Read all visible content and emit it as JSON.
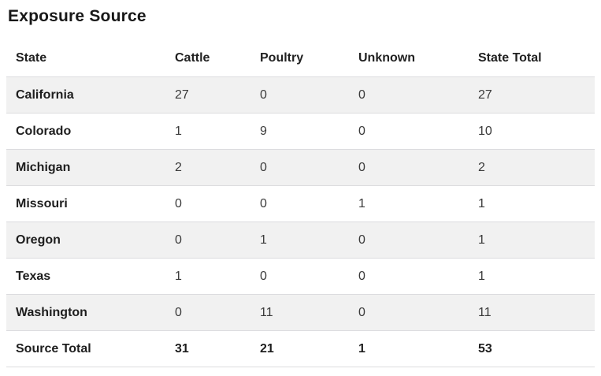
{
  "title": "Exposure Source",
  "chart_data": {
    "type": "table",
    "title": "Exposure Source",
    "columns": [
      "State",
      "Cattle",
      "Poultry",
      "Unknown",
      "State Total"
    ],
    "rows": [
      [
        "California",
        "27",
        "0",
        "0",
        "27"
      ],
      [
        "Colorado",
        "1",
        "9",
        "0",
        "10"
      ],
      [
        "Michigan",
        "2",
        "0",
        "0",
        "2"
      ],
      [
        "Missouri",
        "0",
        "0",
        "1",
        "1"
      ],
      [
        "Oregon",
        "0",
        "1",
        "0",
        "1"
      ],
      [
        "Texas",
        "1",
        "0",
        "0",
        "1"
      ],
      [
        "Washington",
        "0",
        "11",
        "0",
        "11"
      ]
    ],
    "footer_row": [
      "Source Total",
      "31",
      "21",
      "1",
      "53"
    ],
    "layout": {
      "zebra_striping": true,
      "stripe_starts_on_first_data_row": true
    }
  },
  "colors": {
    "background": "#ffffff",
    "row_stripe": "#f1f1f1",
    "row_border": "#dcdcdf",
    "heading_text": "#1e1e1e",
    "value_text": "#3a3a3a"
  }
}
